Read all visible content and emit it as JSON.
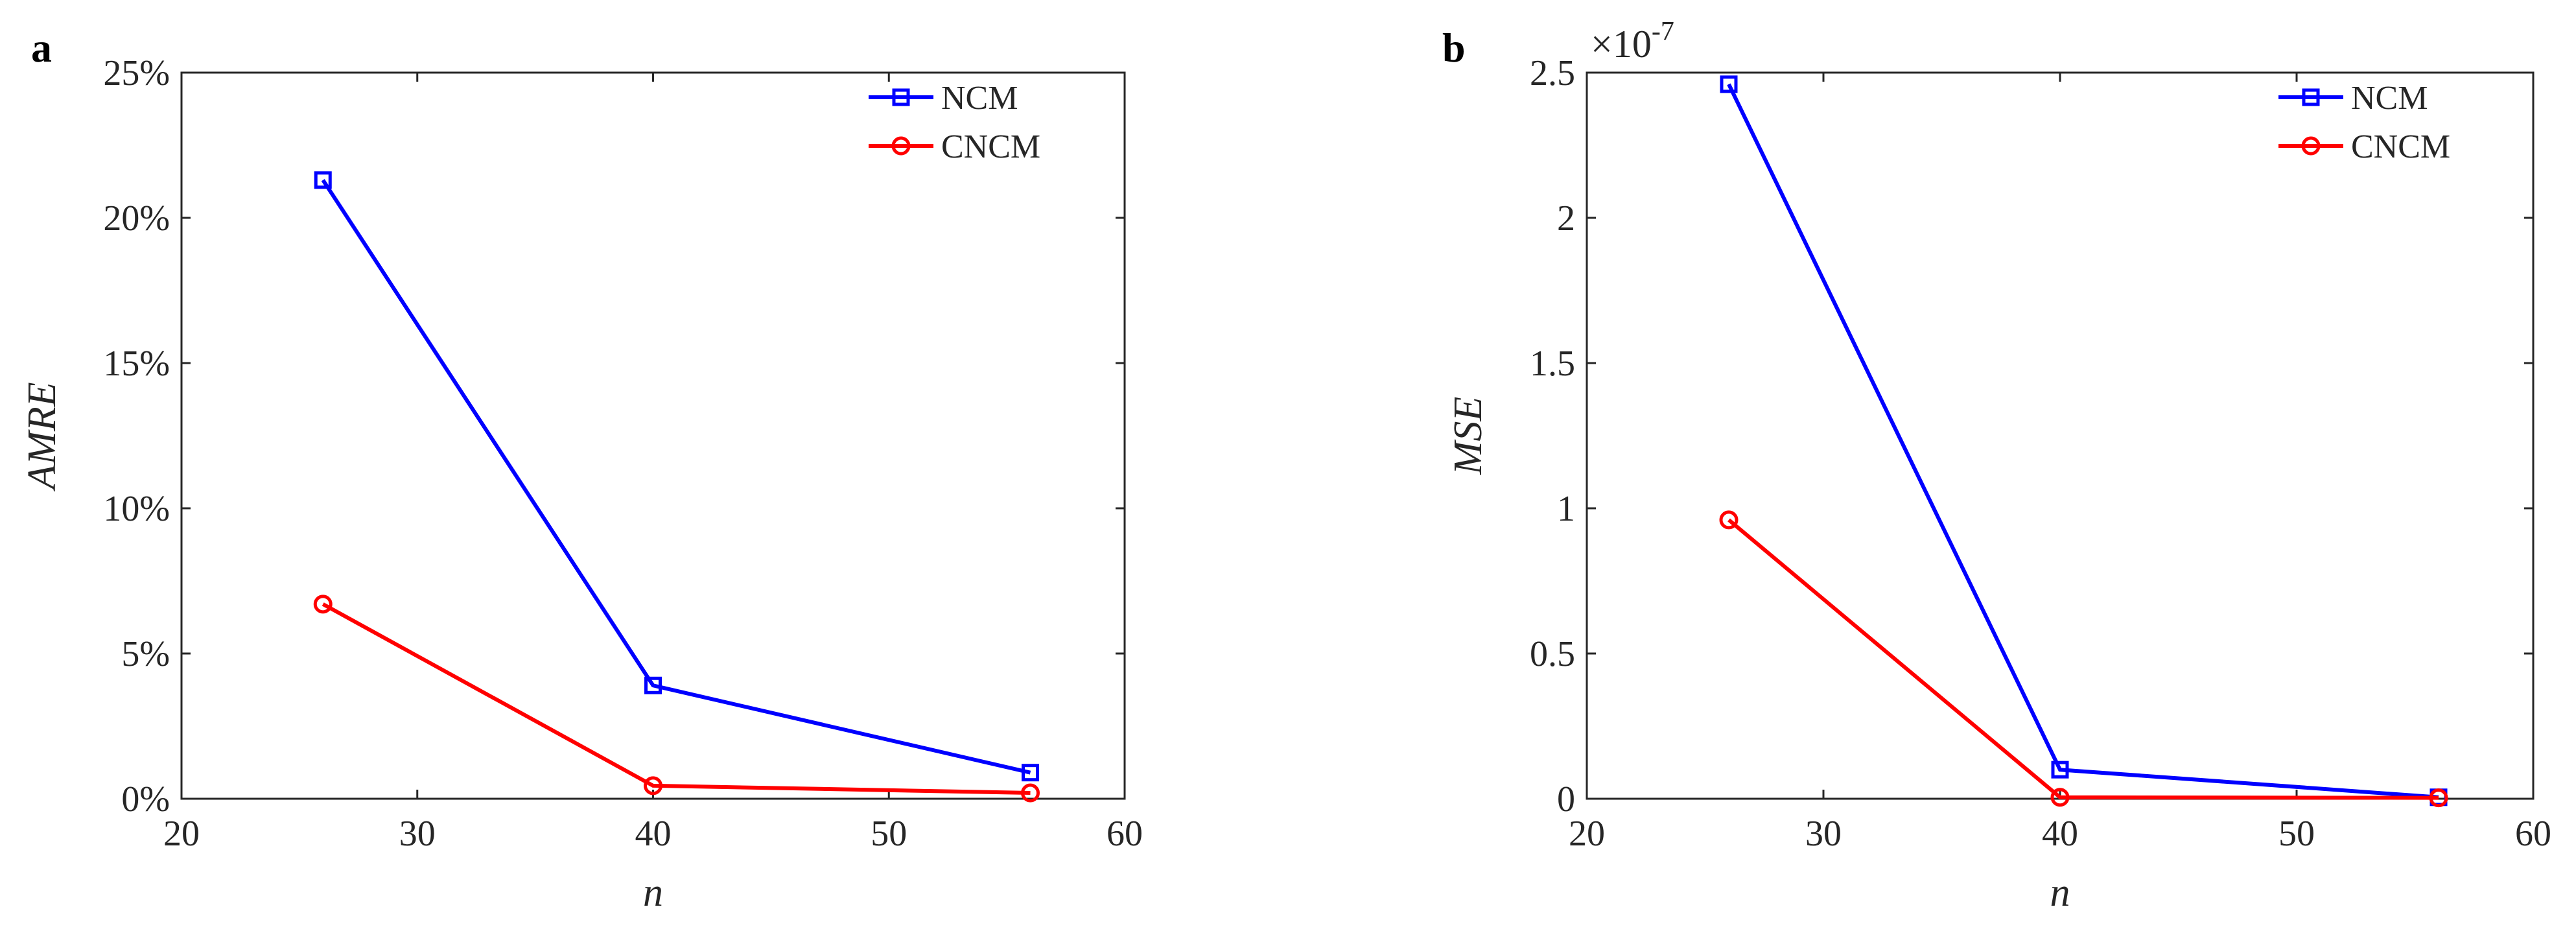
{
  "chart_data": [
    {
      "type": "line",
      "panel": "a",
      "xlabel": "n",
      "ylabel": "AMRE",
      "xlim": [
        20,
        60
      ],
      "ylim": [
        0,
        25
      ],
      "xticks": [
        20,
        30,
        40,
        50,
        60
      ],
      "yticks": [
        0,
        5,
        10,
        15,
        20,
        25
      ],
      "ytick_labels": [
        "0%",
        "5%",
        "10%",
        "15%",
        "20%",
        "25%"
      ],
      "x": [
        26,
        40,
        56
      ],
      "series": [
        {
          "name": "NCM",
          "values": [
            21.3,
            3.9,
            0.9
          ],
          "color": "#0000ff",
          "marker": "square"
        },
        {
          "name": "CNCM",
          "values": [
            6.7,
            0.45,
            0.2
          ],
          "color": "#ff0000",
          "marker": "circle"
        }
      ],
      "legend_position": "top-right",
      "grid": false
    },
    {
      "type": "line",
      "panel": "b",
      "xlabel": "n",
      "ylabel": "MSE",
      "xlim": [
        20,
        60
      ],
      "ylim": [
        0,
        2.5
      ],
      "xticks": [
        20,
        30,
        40,
        50,
        60
      ],
      "yticks": [
        0,
        0.5,
        1,
        1.5,
        2,
        2.5
      ],
      "ytick_labels": [
        "0",
        "0.5",
        "1",
        "1.5",
        "2",
        "2.5"
      ],
      "exponent_base": "×10",
      "exponent_power": "-7",
      "x": [
        26,
        40,
        56
      ],
      "series": [
        {
          "name": "NCM",
          "values": [
            2.46,
            0.1,
            0.005
          ],
          "color": "#0000ff",
          "marker": "square"
        },
        {
          "name": "CNCM",
          "values": [
            0.96,
            0.005,
            0.003
          ],
          "color": "#ff0000",
          "marker": "circle"
        }
      ],
      "legend_position": "top-right",
      "grid": false
    }
  ]
}
